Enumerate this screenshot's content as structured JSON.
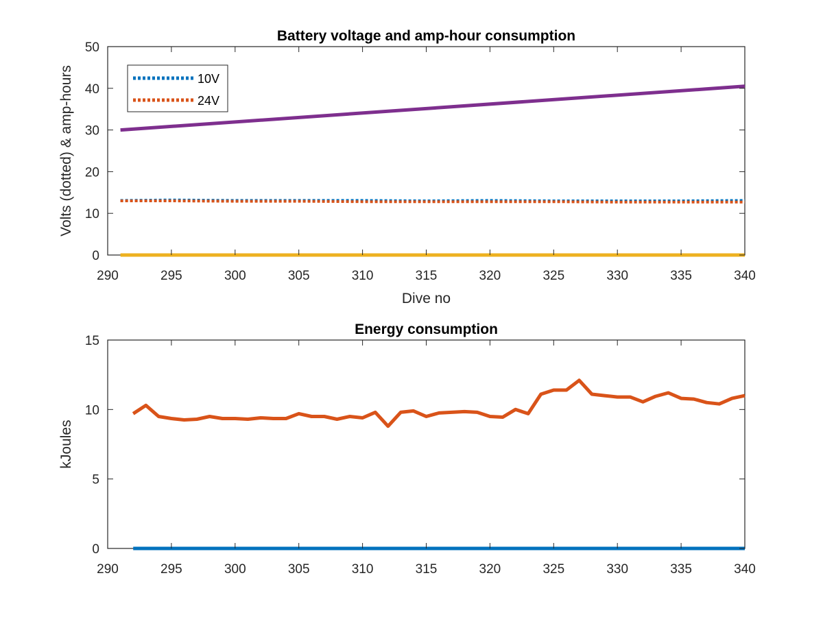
{
  "chart_data": [
    {
      "type": "line",
      "title": "Battery voltage and amp-hour consumption",
      "xlabel": "Dive no",
      "ylabel": "Volts (dotted) & amp-hours",
      "xlim": [
        290,
        340
      ],
      "ylim": [
        0,
        50
      ],
      "xticks": [
        290,
        295,
        300,
        305,
        310,
        315,
        320,
        325,
        330,
        335,
        340
      ],
      "yticks": [
        0,
        10,
        20,
        30,
        40,
        50
      ],
      "grid": false,
      "legend": "top-left",
      "series": [
        {
          "name": "10V",
          "style": "dotted",
          "color": "#0072BD",
          "x": [
            291,
            295,
            300,
            305,
            310,
            315,
            320,
            325,
            330,
            335,
            340
          ],
          "y": [
            13.1,
            13.2,
            13.1,
            13.1,
            13.1,
            13.0,
            13.1,
            13.0,
            13.0,
            13.0,
            13.1
          ]
        },
        {
          "name": "24V",
          "style": "dotted",
          "color": "#D95319",
          "x": [
            291,
            295,
            300,
            305,
            310,
            315,
            320,
            325,
            330,
            335,
            340
          ],
          "y": [
            13.0,
            13.0,
            12.9,
            12.9,
            12.8,
            12.8,
            12.8,
            12.8,
            12.7,
            12.7,
            12.7
          ]
        },
        {
          "style": "solid",
          "color": "#7E2F8E",
          "x": [
            291,
            340
          ],
          "y": [
            30.0,
            40.5
          ]
        },
        {
          "style": "solid",
          "color": "#EDB120",
          "x": [
            291,
            340
          ],
          "y": [
            0,
            0
          ]
        }
      ]
    },
    {
      "type": "line",
      "title": "Energy consumption",
      "xlabel": "",
      "ylabel": "kJoules",
      "xlim": [
        290,
        340
      ],
      "ylim": [
        0,
        15
      ],
      "xticks": [
        290,
        295,
        300,
        305,
        310,
        315,
        320,
        325,
        330,
        335,
        340
      ],
      "yticks": [
        0,
        5,
        10,
        15
      ],
      "grid": false,
      "series": [
        {
          "style": "solid",
          "color": "#D95319",
          "x": [
            292,
            293,
            294,
            295,
            296,
            297,
            298,
            299,
            300,
            301,
            302,
            303,
            304,
            305,
            306,
            307,
            308,
            309,
            310,
            311,
            312,
            313,
            314,
            315,
            316,
            317,
            318,
            319,
            320,
            321,
            322,
            323,
            324,
            325,
            326,
            327,
            328,
            329,
            330,
            331,
            332,
            333,
            334,
            335,
            336,
            337,
            338,
            339,
            340
          ],
          "y": [
            9.7,
            10.3,
            9.5,
            9.35,
            9.25,
            9.3,
            9.5,
            9.35,
            9.35,
            9.3,
            9.4,
            9.35,
            9.35,
            9.7,
            9.5,
            9.5,
            9.3,
            9.5,
            9.4,
            9.8,
            8.8,
            9.8,
            9.9,
            9.5,
            9.75,
            9.8,
            9.85,
            9.8,
            9.5,
            9.45,
            10.0,
            9.7,
            11.1,
            11.4,
            11.4,
            12.1,
            11.1,
            11.0,
            10.9,
            10.9,
            10.55,
            10.95,
            11.2,
            10.8,
            10.75,
            10.5,
            10.4,
            10.8,
            11.0
          ]
        },
        {
          "style": "solid",
          "color": "#0072BD",
          "x": [
            292,
            340
          ],
          "y": [
            0,
            0
          ]
        }
      ]
    }
  ]
}
